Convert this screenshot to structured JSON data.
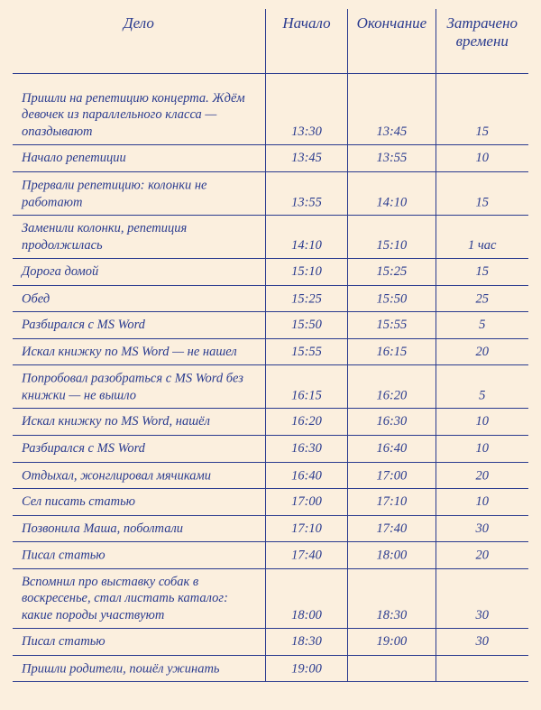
{
  "colors": {
    "paper": "#fbefde",
    "ink": "#2a3b8f"
  },
  "headers": {
    "task": "Дело",
    "start": "Начало",
    "end": "Окончание",
    "duration": "Затрачено времени"
  },
  "rows": [
    {
      "task": "Пришли на репетицию концерта. Ждём девочек из параллельного класса — опаздывают",
      "start": "13:30",
      "end": "13:45",
      "duration": "15"
    },
    {
      "task": "Начало репетиции",
      "start": "13:45",
      "end": "13:55",
      "duration": "10"
    },
    {
      "task": "Прервали репетицию: колонки не работают",
      "start": "13:55",
      "end": "14:10",
      "duration": "15"
    },
    {
      "task": "Заменили колонки, репетиция продолжилась",
      "start": "14:10",
      "end": "15:10",
      "duration": "1 час"
    },
    {
      "task": "Дорога домой",
      "start": "15:10",
      "end": "15:25",
      "duration": "15"
    },
    {
      "task": "Обед",
      "start": "15:25",
      "end": "15:50",
      "duration": "25"
    },
    {
      "task": "Разбирался с MS Word",
      "start": "15:50",
      "end": "15:55",
      "duration": "5"
    },
    {
      "task": "Искал книжку по MS Word — не нашел",
      "start": "15:55",
      "end": "16:15",
      "duration": "20"
    },
    {
      "task": "Попробовал разобраться с MS Word без книжки — не вышло",
      "start": "16:15",
      "end": "16:20",
      "duration": "5"
    },
    {
      "task": "Искал книжку по MS Word, нашёл",
      "start": "16:20",
      "end": "16:30",
      "duration": "10"
    },
    {
      "task": "Разбирался с MS Word",
      "start": "16:30",
      "end": "16:40",
      "duration": "10"
    },
    {
      "task": "Отдыхал, жонглировал мячиками",
      "start": "16:40",
      "end": "17:00",
      "duration": "20"
    },
    {
      "task": "Сел писать статью",
      "start": "17:00",
      "end": "17:10",
      "duration": "10"
    },
    {
      "task": "Позвонила Маша, поболтали",
      "start": "17:10",
      "end": "17:40",
      "duration": "30"
    },
    {
      "task": "Писал статью",
      "start": "17:40",
      "end": "18:00",
      "duration": "20"
    },
    {
      "task": "Вспомнил про выставку собак в воскресенье, стал листать каталог: какие породы участвуют",
      "start": "18:00",
      "end": "18:30",
      "duration": "30"
    },
    {
      "task": "Писал статью",
      "start": "18:30",
      "end": "19:00",
      "duration": "30"
    },
    {
      "task": "Пришли родители, пошёл ужинать",
      "start": "19:00",
      "end": "",
      "duration": ""
    }
  ]
}
